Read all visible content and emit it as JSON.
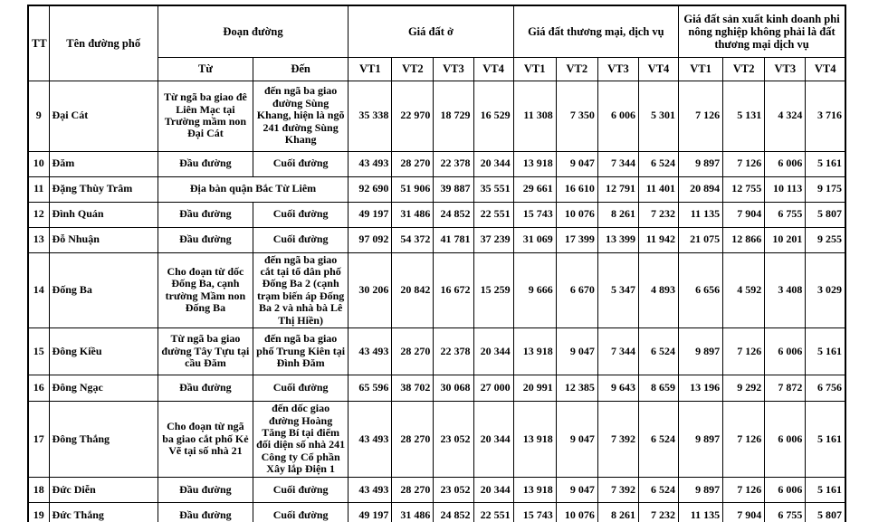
{
  "table": {
    "headers": {
      "tt": "TT",
      "street": "Tên đường phố",
      "segment": "Đoạn đường",
      "from": "Từ",
      "to": "Đến",
      "groups": [
        {
          "label": "Giá đất ở"
        },
        {
          "label": "Giá đất thương mại, dịch vụ"
        },
        {
          "label": "Giá đất sản xuất kinh doanh phi nông nghiệp không phải là đất thương mại dịch vụ"
        }
      ],
      "vt": [
        "VT1",
        "VT2",
        "VT3",
        "VT4"
      ]
    },
    "rows": [
      {
        "tt": "9",
        "street": "Đại Cát",
        "from": "Từ ngã ba giao đê Liên Mạc tại Trường mầm non Đại Cát",
        "to": "đến ngã ba giao đường Sùng Khang, hiện là ngõ 241 đường Sùng Khang",
        "values": [
          "35 338",
          "22 970",
          "18 729",
          "16 529",
          "11 308",
          "7 350",
          "6 006",
          "5 301",
          "7 126",
          "5 131",
          "4 324",
          "3 716"
        ]
      },
      {
        "tt": "10",
        "street": "Đăm",
        "from": "Đầu đường",
        "to": "Cuối đường",
        "values": [
          "43 493",
          "28 270",
          "22 378",
          "20 344",
          "13 918",
          "9 047",
          "7 344",
          "6 524",
          "9 897",
          "7 126",
          "6 006",
          "5 161"
        ]
      },
      {
        "tt": "11",
        "street": "Đặng Thùy Trâm",
        "merged": true,
        "from": "Địa bàn quận Bắc Từ Liêm",
        "to": "",
        "values": [
          "92 690",
          "51 906",
          "39 887",
          "35 551",
          "29 661",
          "16 610",
          "12 791",
          "11 401",
          "20 894",
          "12 755",
          "10 113",
          "9 175"
        ]
      },
      {
        "tt": "12",
        "street": "Đình Quán",
        "from": "Đầu đường",
        "to": "Cuối đường",
        "values": [
          "49 197",
          "31 486",
          "24 852",
          "22 551",
          "15 743",
          "10 076",
          "8 261",
          "7 232",
          "11 135",
          "7 904",
          "6 755",
          "5 807"
        ]
      },
      {
        "tt": "13",
        "street": "Đỗ Nhuận",
        "from": "Đầu đường",
        "to": "Cuối đường",
        "values": [
          "97 092",
          "54 372",
          "41 781",
          "37 239",
          "31 069",
          "17 399",
          "13 399",
          "11 942",
          "21 075",
          "12 866",
          "10 201",
          "9 255"
        ]
      },
      {
        "tt": "14",
        "street": "Đống Ba",
        "from": "Cho đoạn từ dốc Đống Ba, cạnh trường Mầm non Đống Ba",
        "to": "đến ngã ba giao cắt tại tổ dân phố Đống Ba 2 (cạnh trạm biến áp Đống Ba 2 và nhà bà Lê Thị Hiền)",
        "values": [
          "30 206",
          "20 842",
          "16 672",
          "15 259",
          "9 666",
          "6 670",
          "5 347",
          "4 893",
          "6 656",
          "4 592",
          "3 408",
          "3 029"
        ]
      },
      {
        "tt": "15",
        "street": "Đông Kiều",
        "from": "Từ ngã ba giao đường Tây Tựu tại cầu Đăm",
        "to": "đến ngã ba giao phố Trung Kiên tại Đình Đăm",
        "values": [
          "43 493",
          "28 270",
          "22 378",
          "20 344",
          "13 918",
          "9 047",
          "7 344",
          "6 524",
          "9 897",
          "7 126",
          "6 006",
          "5 161"
        ]
      },
      {
        "tt": "16",
        "street": "Đông Ngạc",
        "from": "Đầu đường",
        "to": "Cuối đường",
        "values": [
          "65 596",
          "38 702",
          "30 068",
          "27 000",
          "20 991",
          "12 385",
          "9 643",
          "8 659",
          "13 196",
          "9 292",
          "7 872",
          "6 756"
        ]
      },
      {
        "tt": "17",
        "street": "Đông Thắng",
        "from": "Cho đoạn từ ngã ba giao cắt phố Kẻ Vẽ tại số nhà 21",
        "to": "đến dốc giao đường Hoàng Tăng Bí tại điểm đối diện số nhà 241 Công ty Cổ phần Xây lắp Điện 1",
        "values": [
          "43 493",
          "28 270",
          "23 052",
          "20 344",
          "13 918",
          "9 047",
          "7 392",
          "6 524",
          "9 897",
          "7 126",
          "6 006",
          "5 161"
        ]
      },
      {
        "tt": "18",
        "street": "Đức Diễn",
        "from": "Đầu đường",
        "to": "Cuối đường",
        "values": [
          "43 493",
          "28 270",
          "23 052",
          "20 344",
          "13 918",
          "9 047",
          "7 392",
          "6 524",
          "9 897",
          "7 126",
          "6 006",
          "5 161"
        ]
      },
      {
        "tt": "19",
        "street": "Đức Thắng",
        "from": "Đầu đường",
        "to": "Cuối đường",
        "values": [
          "49 197",
          "31 486",
          "24 852",
          "22 551",
          "15 743",
          "10 076",
          "8 261",
          "7 232",
          "11 135",
          "7 904",
          "6 755",
          "5 807"
        ]
      }
    ]
  }
}
